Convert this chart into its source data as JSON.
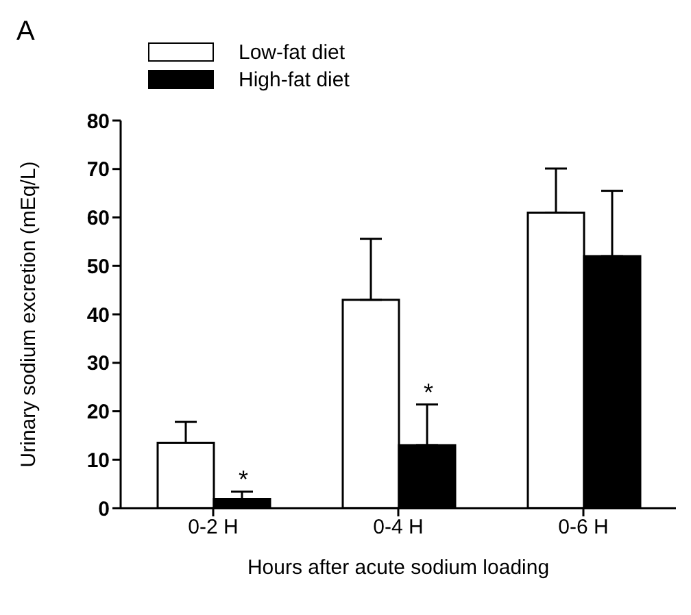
{
  "chart_data": {
    "type": "bar",
    "categories": [
      "0-2 H",
      "0-4 H",
      "0-6 H"
    ],
    "series": [
      {
        "name": "Low-fat diet",
        "color": "#ffffff",
        "values": [
          13.5,
          43,
          61
        ],
        "errors": [
          [
            13.5,
            17.8
          ],
          [
            43,
            55.6
          ],
          [
            61,
            70.1
          ]
        ]
      },
      {
        "name": "High-fat diet",
        "color": "#000000",
        "values": [
          1.9,
          13,
          52
        ],
        "errors": [
          [
            1.9,
            3.4
          ],
          [
            13,
            21.4
          ],
          [
            52,
            65.5
          ]
        ]
      }
    ],
    "xlabel": "Hours after acute sodium loading",
    "ylabel": "Urinary sodium excretion  (mEq/L)",
    "ylim": [
      0,
      80
    ],
    "yticks": [
      0,
      10,
      20,
      30,
      40,
      50,
      60,
      70,
      80
    ],
    "legend": "top left",
    "annotations": [
      "A",
      {
        "text": "*",
        "x": "0-2 H",
        "y": 6
      },
      {
        "text": "*",
        "x": "0-4 H",
        "y": 24
      }
    ]
  }
}
